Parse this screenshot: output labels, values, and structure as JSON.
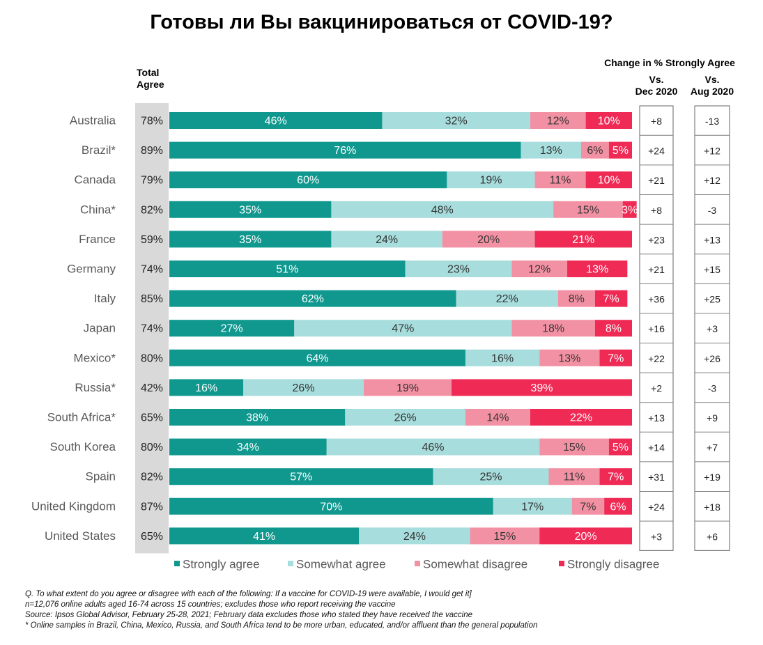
{
  "header": {
    "title": "Готовы ли Вы вакцинироваться от COVID-19?",
    "total_agree_label": [
      "Total",
      "Agree"
    ],
    "change_label": "Change in % Strongly Agree",
    "vs_dec_label": [
      "Vs.",
      "Dec 2020"
    ],
    "vs_aug_label": [
      "Vs.",
      "Aug 2020"
    ]
  },
  "colors": {
    "strongly_agree": "#10988f",
    "somewhat_agree": "#a7dddc",
    "somewhat_disagree": "#f391a4",
    "strongly_disagree": "#ee2a55",
    "total_column_bg": "#d9d9d9"
  },
  "chart_data": {
    "type": "bar",
    "orientation": "horizontal",
    "stacked": true,
    "categories": [
      "Australia",
      "Brazil*",
      "Canada",
      "China*",
      "France",
      "Germany",
      "Italy",
      "Japan",
      "Mexico*",
      "Russia*",
      "South Africa*",
      "South Korea",
      "Spain",
      "United Kingdom",
      "United States"
    ],
    "series": [
      {
        "name": "Strongly agree",
        "values": [
          46,
          76,
          60,
          35,
          35,
          51,
          62,
          27,
          64,
          16,
          38,
          34,
          57,
          70,
          41
        ]
      },
      {
        "name": "Somewhat agree",
        "values": [
          32,
          13,
          19,
          48,
          24,
          23,
          22,
          47,
          16,
          26,
          26,
          46,
          25,
          17,
          24
        ]
      },
      {
        "name": "Somewhat disagree",
        "values": [
          12,
          6,
          11,
          15,
          20,
          12,
          8,
          18,
          13,
          19,
          14,
          15,
          11,
          7,
          15
        ]
      },
      {
        "name": "Strongly disagree",
        "values": [
          10,
          5,
          10,
          3,
          21,
          13,
          7,
          8,
          7,
          39,
          22,
          5,
          7,
          6,
          20
        ]
      }
    ],
    "total_agree": [
      "78%",
      "89%",
      "79%",
      "82%",
      "59%",
      "74%",
      "85%",
      "74%",
      "80%",
      "42%",
      "65%",
      "80%",
      "82%",
      "87%",
      "65%"
    ],
    "change_vs_dec_2020": [
      "+8",
      "+24",
      "+21",
      "+8",
      "+23",
      "+21",
      "+36",
      "+16",
      "+22",
      "+2",
      "+13",
      "+14",
      "+31",
      "+24",
      "+3"
    ],
    "change_vs_aug_2020": [
      "-13",
      "+12",
      "+12",
      "-3",
      "+13",
      "+15",
      "+25",
      "+3",
      "+26",
      "-3",
      "+9",
      "+7",
      "+19",
      "+18",
      "+6"
    ],
    "xlim": [
      0,
      100
    ],
    "legend_position": "bottom",
    "grid": false
  },
  "footnotes": [
    "Q. To what extent do you agree or disagree with each of the following: If a vaccine for COVID-19 were available, I would get it]",
    "n=12,076 online adults aged 16-74 across 15 countries; excludes those who report receiving the vaccine",
    "Source: Ipsos Global Advisor, February 25-28, 2021; February data excludes those who stated they have received the vaccine",
    "* Online samples in Brazil, China, Mexico, Russia, and South Africa tend to be more urban, educated, and/or affluent than the general population"
  ]
}
